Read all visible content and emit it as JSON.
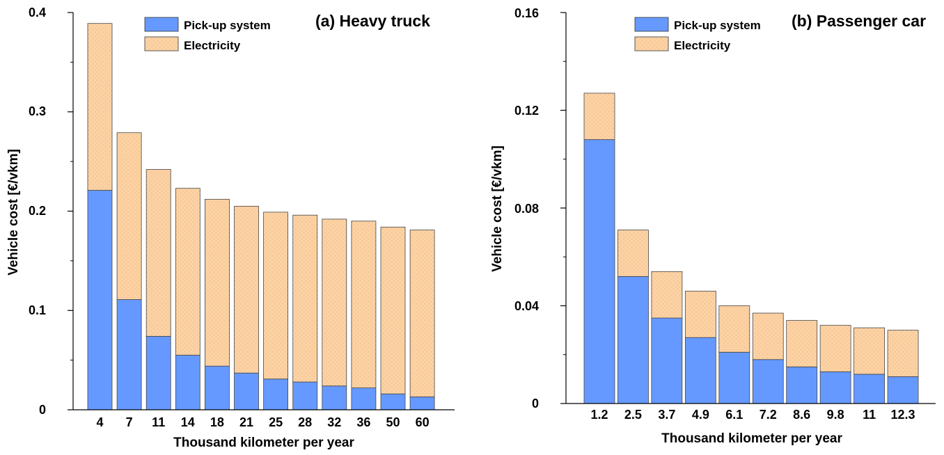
{
  "charts": [
    {
      "title": "(a) Heavy truck",
      "ylabel": "Vehicle cost [€/vkm]",
      "xlabel": "Thousand kilometer per year",
      "ytick_labels": [
        "0",
        "0.1",
        "0.2",
        "0.3",
        "0.4"
      ],
      "legend": [
        "Pick-up system",
        "Electricity"
      ]
    },
    {
      "title": "(b) Passenger car",
      "ylabel": "Vehicle cost [€/vkm]",
      "xlabel": "Thousand kilometer per year",
      "ytick_labels": [
        "0",
        "0.04",
        "0.08",
        "0.12",
        "0.16"
      ],
      "legend": [
        "Pick-up system",
        "Electricity"
      ]
    }
  ],
  "chart_data": [
    {
      "type": "bar",
      "stacked": true,
      "title": "(a) Heavy truck",
      "xlabel": "Thousand kilometer per year",
      "ylabel": "Vehicle cost [€/vkm]",
      "categories": [
        "4",
        "7",
        "11",
        "14",
        "18",
        "21",
        "25",
        "28",
        "32",
        "36",
        "50",
        "60"
      ],
      "ylim": [
        0,
        0.4
      ],
      "yticks": [
        0,
        0.1,
        0.2,
        0.3,
        0.4
      ],
      "legend_position": "top-center",
      "grid": false,
      "series": [
        {
          "name": "Pick-up system",
          "color": "#6699ff",
          "values": [
            0.221,
            0.111,
            0.074,
            0.055,
            0.044,
            0.037,
            0.031,
            0.028,
            0.024,
            0.022,
            0.016,
            0.013
          ]
        },
        {
          "name": "Electricity",
          "color": "#fcd2a4",
          "values": [
            0.168,
            0.168,
            0.168,
            0.168,
            0.168,
            0.168,
            0.168,
            0.168,
            0.168,
            0.168,
            0.168,
            0.168
          ]
        }
      ]
    },
    {
      "type": "bar",
      "stacked": true,
      "title": "(b) Passenger car",
      "xlabel": "Thousand kilometer per year",
      "ylabel": "Vehicle cost [€/vkm]",
      "categories": [
        "1.2",
        "2.5",
        "3.7",
        "4.9",
        "6.1",
        "7.2",
        "8.6",
        "9.8",
        "11",
        "12.3"
      ],
      "ylim": [
        0,
        0.16
      ],
      "yticks": [
        0,
        0.04,
        0.08,
        0.12,
        0.16
      ],
      "legend_position": "top-center",
      "grid": false,
      "series": [
        {
          "name": "Pick-up system",
          "color": "#6699ff",
          "values": [
            0.108,
            0.052,
            0.035,
            0.027,
            0.021,
            0.018,
            0.015,
            0.013,
            0.012,
            0.011
          ]
        },
        {
          "name": "Electricity",
          "color": "#fcd2a4",
          "values": [
            0.019,
            0.019,
            0.019,
            0.019,
            0.019,
            0.019,
            0.019,
            0.019,
            0.019,
            0.019
          ]
        }
      ]
    }
  ]
}
